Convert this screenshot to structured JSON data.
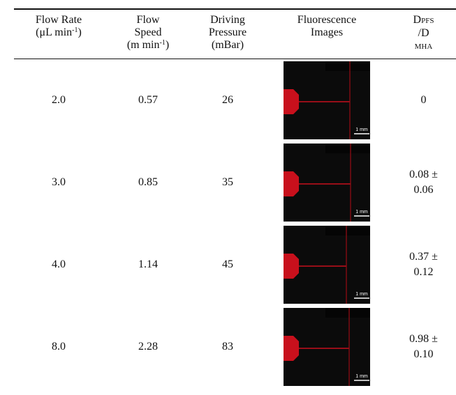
{
  "table": {
    "headers": [
      {
        "parts": [
          {
            "text": "Flow Rate",
            "kind": "line"
          },
          {
            "text": "(μL min",
            "kind": "text"
          },
          {
            "text": "-1",
            "kind": "sup"
          },
          {
            "text": ")",
            "kind": "text"
          }
        ]
      },
      {
        "parts": [
          {
            "text": "Flow",
            "kind": "line"
          },
          {
            "text": "Speed",
            "kind": "line"
          },
          {
            "text": "(m min",
            "kind": "text"
          },
          {
            "text": "-1",
            "kind": "sup"
          },
          {
            "text": ")",
            "kind": "text"
          }
        ]
      },
      {
        "parts": [
          {
            "text": "Driving",
            "kind": "line"
          },
          {
            "text": "Pressure",
            "kind": "line"
          },
          {
            "text": "(mBar)",
            "kind": "text"
          }
        ]
      },
      {
        "parts": [
          {
            "text": "Fluorescence",
            "kind": "line"
          },
          {
            "text": "Images",
            "kind": "text"
          }
        ]
      },
      {
        "parts": [
          {
            "text": "D",
            "kind": "text"
          },
          {
            "text": "PFS",
            "kind": "sub"
          },
          {
            "text": "/D",
            "kind": "line"
          },
          {
            "text": "MHA",
            "kind": "sub"
          }
        ]
      }
    ],
    "rows": [
      {
        "flow_rate": "2.0",
        "flow_speed": "0.57",
        "pressure": "26",
        "scale_bar": "1 mm",
        "ratio": "0"
      },
      {
        "flow_rate": "3.0",
        "flow_speed": "0.85",
        "pressure": "35",
        "scale_bar": "1 mm",
        "ratio": "0.08 ± 0.06"
      },
      {
        "flow_rate": "4.0",
        "flow_speed": "1.14",
        "pressure": "45",
        "scale_bar": "1 mm",
        "ratio": "0.37 ± 0.12"
      },
      {
        "flow_rate": "8.0",
        "flow_speed": "2.28",
        "pressure": "83",
        "scale_bar": "1 mm",
        "ratio": "0.98 ± 0.10"
      }
    ]
  }
}
